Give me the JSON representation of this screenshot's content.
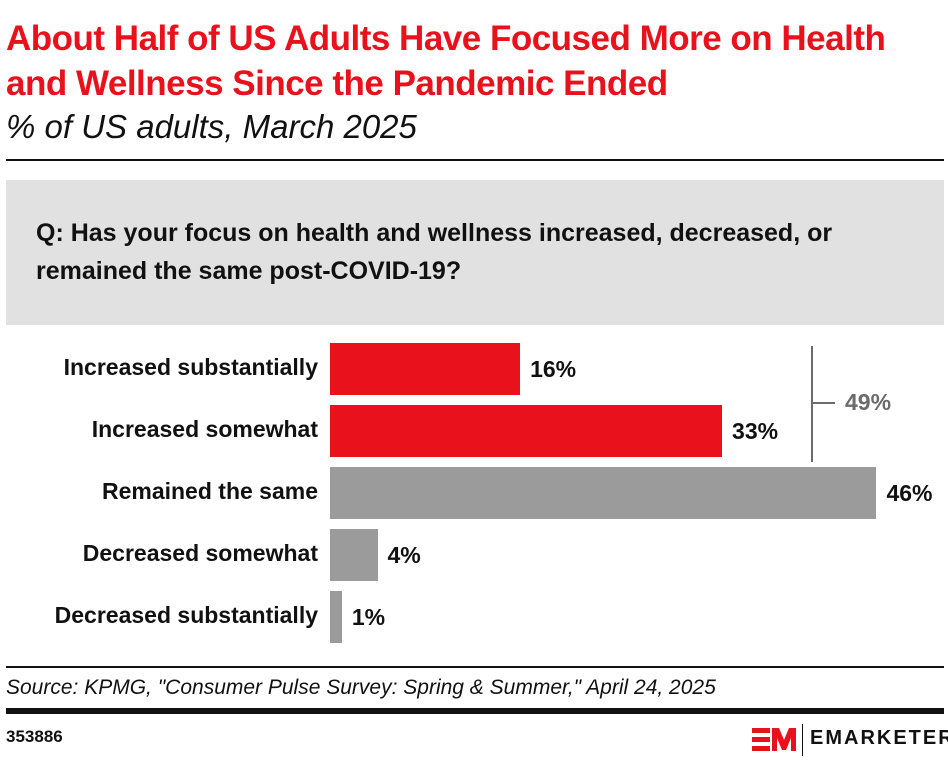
{
  "header": {
    "title": "About Half of US Adults Have Focused More on Health and Wellness Since the Pandemic Ended",
    "subtitle": "% of US adults, March 2025"
  },
  "question": "Q: Has your focus on health and wellness increased, decreased, or remained the same post-COVID-19?",
  "chart_data": {
    "type": "bar",
    "orientation": "horizontal",
    "categories": [
      "Increased substantially",
      "Increased somewhat",
      "Remained the same",
      "Decreased somewhat",
      "Decreased substantially"
    ],
    "values": [
      16,
      33,
      46,
      4,
      1
    ],
    "value_labels": [
      "16%",
      "33%",
      "46%",
      "4%",
      "1%"
    ],
    "bar_colors": [
      "#e8111c",
      "#e8111c",
      "#9b9b9b",
      "#9b9b9b",
      "#9b9b9b"
    ],
    "annotation": {
      "label": "49%",
      "groups": [
        "Increased substantially",
        "Increased somewhat"
      ],
      "color": "#6b6b6b"
    },
    "grid": false
  },
  "footer": {
    "source": "Source: KPMG, \"Consumer Pulse Survey: Spring & Summer,\" April 24, 2025",
    "chart_id": "353886",
    "brand": "EMARKETER",
    "logo": "EM"
  }
}
